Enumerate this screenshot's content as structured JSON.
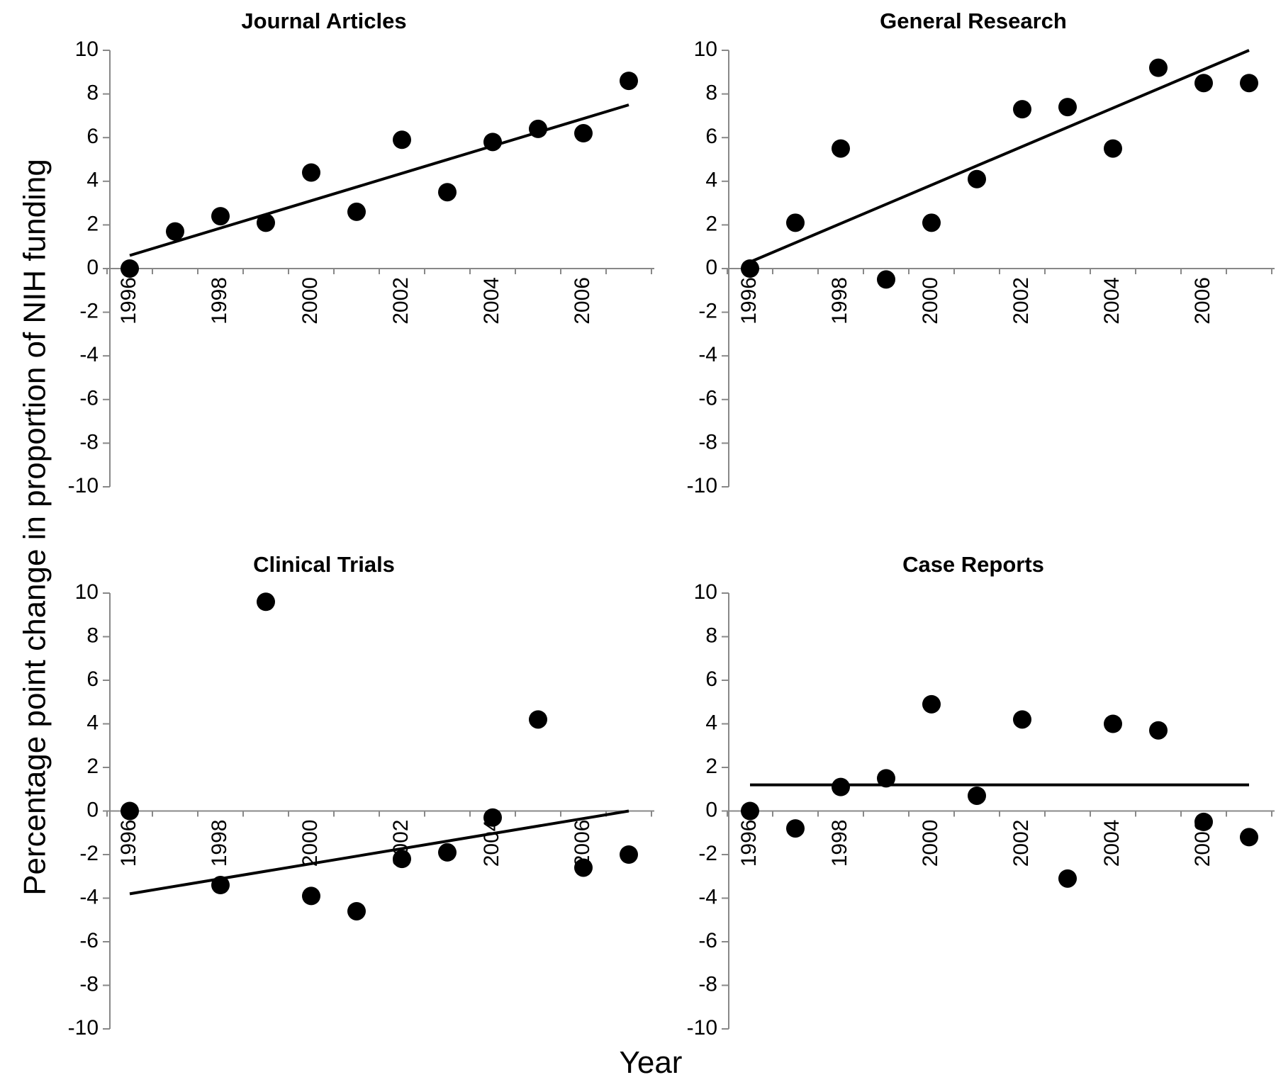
{
  "figure": {
    "ylabel": "Percentage point change in proportion of NIH funding",
    "xlabel": "Year"
  },
  "chart_data": [
    {
      "type": "scatter",
      "title": "Journal Articles",
      "ylim": [
        -10,
        10
      ],
      "yticks": [
        10,
        8,
        6,
        4,
        2,
        0,
        -2,
        -4,
        -6,
        -8,
        -10
      ],
      "xlim": [
        1996,
        2007
      ],
      "xticks": [
        1996,
        1998,
        2000,
        2002,
        2004,
        2006
      ],
      "grid": false,
      "x": [
        1996,
        1997,
        1998,
        1999,
        2000,
        2001,
        2002,
        2003,
        2004,
        2005,
        2006,
        2007
      ],
      "y": [
        0.0,
        1.7,
        2.4,
        2.1,
        4.4,
        2.6,
        5.9,
        3.5,
        5.8,
        6.4,
        6.2,
        8.6
      ],
      "trendline": {
        "x": [
          1996,
          2007
        ],
        "y": [
          0.6,
          7.5
        ]
      }
    },
    {
      "type": "scatter",
      "title": "General Research",
      "ylim": [
        -10,
        10
      ],
      "yticks": [
        10,
        8,
        6,
        4,
        2,
        0,
        -2,
        -4,
        -6,
        -8,
        -10
      ],
      "xlim": [
        1996,
        2007
      ],
      "xticks": [
        1996,
        1998,
        2000,
        2002,
        2004,
        2006
      ],
      "grid": false,
      "x": [
        1996,
        1997,
        1998,
        1999,
        2000,
        2001,
        2002,
        2003,
        2004,
        2005,
        2006,
        2007
      ],
      "y": [
        0.0,
        2.1,
        5.5,
        -0.5,
        2.1,
        4.1,
        7.3,
        7.4,
        5.5,
        9.2,
        8.5,
        8.5
      ],
      "trendline": {
        "x": [
          1996,
          2007
        ],
        "y": [
          0.3,
          10.0
        ]
      }
    },
    {
      "type": "scatter",
      "title": "Clinical Trials",
      "ylim": [
        -10,
        10
      ],
      "yticks": [
        10,
        8,
        6,
        4,
        2,
        0,
        -2,
        -4,
        -6,
        -8,
        -10
      ],
      "xlim": [
        1996,
        2007
      ],
      "xticks": [
        1996,
        1998,
        2000,
        2002,
        2004,
        2006
      ],
      "grid": false,
      "x": [
        1996,
        1998,
        1999,
        2000,
        2001,
        2002,
        2003,
        2004,
        2005,
        2006,
        2007
      ],
      "y": [
        0.0,
        -3.4,
        9.6,
        -3.9,
        -4.6,
        -2.2,
        -1.9,
        -0.3,
        4.2,
        -2.6,
        -2.0
      ],
      "trendline": {
        "x": [
          1996,
          2007
        ],
        "y": [
          -3.8,
          0.0
        ]
      }
    },
    {
      "type": "scatter",
      "title": "Case Reports",
      "ylim": [
        -10,
        10
      ],
      "yticks": [
        10,
        8,
        6,
        4,
        2,
        0,
        -2,
        -4,
        -6,
        -8,
        -10
      ],
      "xlim": [
        1996,
        2007
      ],
      "xticks": [
        1996,
        1998,
        2000,
        2002,
        2004,
        2006
      ],
      "grid": false,
      "x": [
        1996,
        1997,
        1998,
        1999,
        2000,
        2001,
        2002,
        2003,
        2004,
        2005,
        2006,
        2007
      ],
      "y": [
        0.0,
        -0.8,
        1.1,
        1.5,
        4.9,
        0.7,
        4.2,
        -3.1,
        4.0,
        3.7,
        -0.5,
        -1.2
      ],
      "trendline": {
        "x": [
          1996,
          2007
        ],
        "y": [
          1.2,
          1.2
        ]
      }
    }
  ],
  "colors": {
    "marker": "#000000",
    "line": "#000000",
    "axis": "#888888",
    "text": "#000000"
  }
}
